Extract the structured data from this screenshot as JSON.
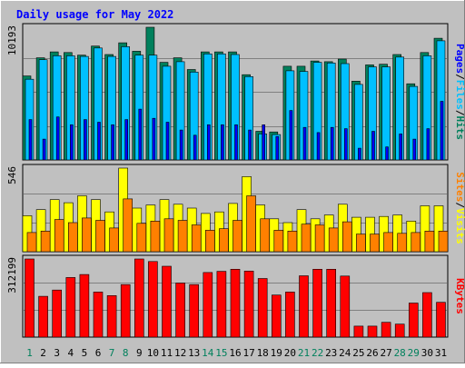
{
  "chart_data": {
    "type": "bar",
    "title": "Daily usage for May 2022",
    "categories": [
      "1",
      "2",
      "3",
      "4",
      "5",
      "6",
      "7",
      "8",
      "9",
      "10",
      "11",
      "12",
      "13",
      "14",
      "15",
      "16",
      "17",
      "18",
      "19",
      "20",
      "21",
      "22",
      "23",
      "24",
      "25",
      "26",
      "27",
      "28",
      "29",
      "30",
      "31"
    ],
    "weekend_days": [
      "1",
      "7",
      "8",
      "14",
      "15",
      "21",
      "22",
      "28",
      "29"
    ],
    "panels": {
      "top": {
        "ymax_label": "10193",
        "ymax": 10193,
        "legend": [
          "Pages",
          "Files",
          "Hits"
        ],
        "series": [
          {
            "name": "Hits",
            "color": "#00805c",
            "values": [
              6450,
              7850,
              8300,
              8250,
              8050,
              8750,
              8100,
              9000,
              8350,
              10193,
              7500,
              7850,
              6950,
              8300,
              8300,
              8300,
              6550,
              2200,
              2150,
              7200,
              7200,
              7600,
              7550,
              7750,
              6050,
              7300,
              7350,
              8100,
              5850,
              8250,
              9350
            ]
          },
          {
            "name": "Files",
            "color": "#00c0ff",
            "values": [
              6200,
              7700,
              8000,
              8000,
              7950,
              8600,
              7950,
              8700,
              8050,
              8050,
              7200,
              7550,
              6750,
              8150,
              8150,
              8100,
              6400,
              2000,
              1950,
              6850,
              6800,
              7500,
              7450,
              7400,
              5800,
              7150,
              7150,
              7900,
              5650,
              8000,
              9150
            ]
          },
          {
            "name": "Pages",
            "color": "#0000ff",
            "values": [
              3100,
              1600,
              3300,
              2700,
              3100,
              2900,
              2700,
              3100,
              3900,
              3200,
              2900,
              2300,
              1900,
              2700,
              2700,
              2700,
              2300,
              2700,
              1800,
              3800,
              2500,
              2100,
              2500,
              2400,
              900,
              2200,
              1000,
              2000,
              1600,
              2400,
              4500
            ]
          }
        ]
      },
      "middle": {
        "ymax_label": "546",
        "ymax": 546,
        "legend": [
          "Sites",
          "Visits"
        ],
        "series": [
          {
            "name": "Visits",
            "color": "#ffff00",
            "values": [
              235,
              275,
              340,
              320,
              365,
              340,
              260,
              546,
              285,
              305,
              340,
              310,
              285,
              250,
              260,
              315,
              490,
              305,
              215,
              190,
              275,
              215,
              240,
              310,
              225,
              225,
              230,
              240,
              200,
              300,
              300
            ]
          },
          {
            "name": "Sites",
            "color": "#ff8000",
            "values": [
              125,
              135,
              210,
              190,
              220,
              205,
              155,
              345,
              185,
              200,
              215,
              205,
              175,
              140,
              150,
              205,
              365,
              215,
              140,
              135,
              180,
              175,
              155,
              195,
              115,
              115,
              125,
              120,
              125,
              135,
              135
            ]
          }
        ]
      },
      "bottom": {
        "ymax_label": "312199",
        "ymax": 312199,
        "legend": [
          "KBytes"
        ],
        "series": [
          {
            "name": "KBytes",
            "color": "#ff0000",
            "values": [
              312199,
              163000,
              188000,
              238000,
              250000,
              180000,
              166000,
              210000,
              312199,
              302000,
              283000,
              216000,
              210000,
              258000,
              263000,
              271000,
              264000,
              234000,
              168000,
              180000,
              245000,
              271000,
              271000,
              244000,
              44000,
              44000,
              59000,
              52000,
              136000,
              178000,
              139000
            ]
          }
        ]
      }
    }
  }
}
